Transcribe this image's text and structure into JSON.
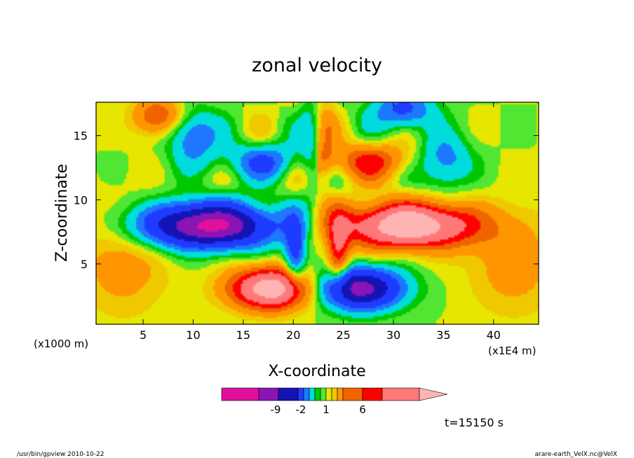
{
  "chart_data": {
    "type": "heatmap",
    "title": "zonal velocity",
    "xlabel": "X-coordinate",
    "ylabel": "Z-coordinate",
    "x_unit": "(x1E4 m)",
    "y_unit": "(x1000 m)",
    "xlim": [
      0.3,
      44.5
    ],
    "ylim": [
      0.3,
      17.6
    ],
    "x_ticks": [
      5,
      10,
      15,
      20,
      25,
      30,
      35,
      40
    ],
    "y_ticks": [
      5,
      10,
      15
    ],
    "grid": false,
    "colorbar": {
      "ticks": [
        -9,
        -2,
        1,
        6
      ],
      "tick_labels": [
        "-9",
        "-2",
        "1",
        "6"
      ],
      "colors": [
        "#e0109c",
        "#8a14b4",
        "#1414b4",
        "#1e3cff",
        "#1e78ff",
        "#00dcdc",
        "#00c800",
        "#50e632",
        "#e6e600",
        "#f0c800",
        "#ff9600",
        "#f06400",
        "#ff0000",
        "#ff7878",
        "#ffb4b4"
      ]
    },
    "time_label": "t=15150 s",
    "field_features": [
      {
        "x": 11.5,
        "z": 8.0,
        "u": -9
      },
      {
        "x": 31.5,
        "z": 8.0,
        "u": 6
      },
      {
        "x": 18.5,
        "z": 3.0,
        "u": 6
      },
      {
        "x": 26.5,
        "z": 3.0,
        "u": -9
      },
      {
        "x": 22.5,
        "z": 8.0,
        "u": 0
      }
    ]
  },
  "footer": {
    "left": "/usr/bin/gpview   2010-10-22",
    "right": "arare-earth_VelX.nc@VelX"
  },
  "colors": {
    "background": "#ffffff",
    "contour_line": "#000000"
  }
}
